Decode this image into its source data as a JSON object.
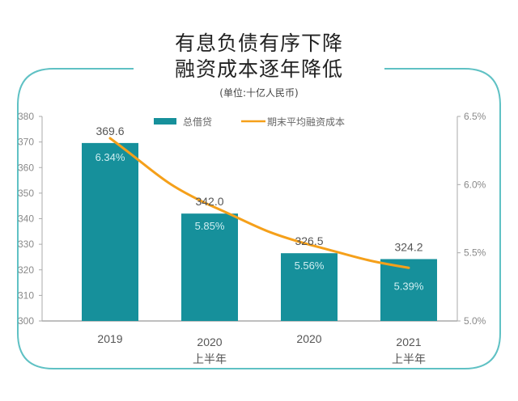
{
  "title_line1": "有息负债有序下降",
  "title_line2": "融资成本逐年降低",
  "unit_note": "(单位:十亿人民币)",
  "colors": {
    "bar": "#16909b",
    "line": "#f5a01a",
    "frame": "#5fc1c4",
    "axis": "#aaaaaa"
  },
  "chart_data": {
    "type": "bar",
    "categories": [
      {
        "line1": "2019",
        "line2": ""
      },
      {
        "line1": "2020",
        "line2": "上半年"
      },
      {
        "line1": "2020",
        "line2": ""
      },
      {
        "line1": "2021",
        "line2": "上半年"
      }
    ],
    "series": [
      {
        "name": "总借贷",
        "type": "bar",
        "axis": "left",
        "values": [
          369.6,
          342.0,
          326.5,
          324.2
        ],
        "labels": [
          "369.6",
          "342.0",
          "326.5",
          "324.2"
        ]
      },
      {
        "name": "期末平均融资成本",
        "type": "line",
        "axis": "right",
        "values": [
          6.34,
          5.85,
          5.56,
          5.39
        ],
        "labels": [
          "6.34%",
          "5.85%",
          "5.56%",
          "5.39%"
        ]
      }
    ],
    "y_left": {
      "range": [
        300,
        380
      ],
      "ticks": [
        "300",
        "310",
        "320",
        "330",
        "340",
        "350",
        "360",
        "370",
        "380"
      ]
    },
    "y_right": {
      "range": [
        5.0,
        6.5
      ],
      "ticks": [
        "5.0%",
        "5.5%",
        "6.0%",
        "6.5%"
      ]
    },
    "legend_position": "top-center",
    "grid": false
  }
}
